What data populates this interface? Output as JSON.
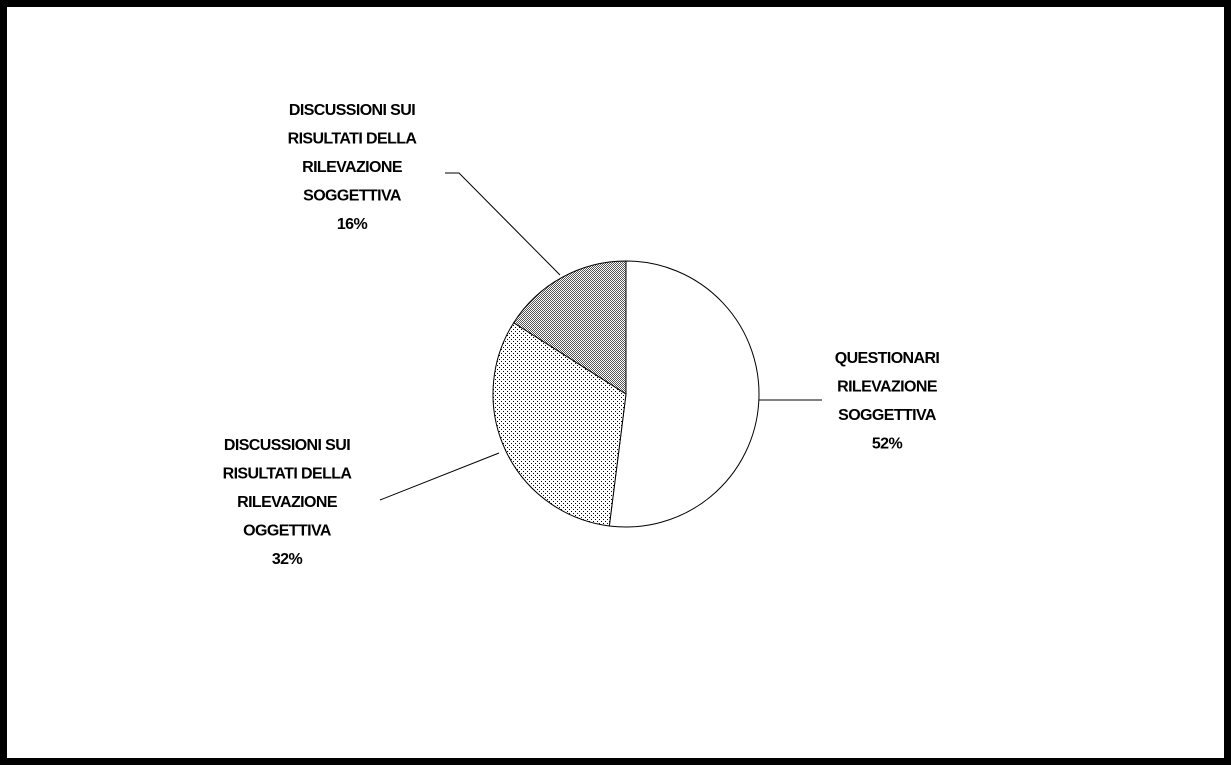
{
  "chart_data": {
    "type": "pie",
    "slices": [
      {
        "label": "QUESTIONARI RILEVAZIONE SOGGETTIVA",
        "label_lines": [
          "QUESTIONARI",
          "RILEVAZIONE",
          "SOGGETTIVA"
        ],
        "percent_text": "52%",
        "value": 52,
        "pattern": "solid-white"
      },
      {
        "label": "DISCUSSIONI SUI RISULTATI DELLA RILEVAZIONE OGGETTIVA",
        "label_lines": [
          "DISCUSSIONI SUI",
          "RISULTATI DELLA",
          "RILEVAZIONE",
          "OGGETTIVA"
        ],
        "percent_text": "32%",
        "value": 32,
        "pattern": "light-dots"
      },
      {
        "label": "DISCUSSIONI SUI RISULTATI DELLA RILEVAZIONE SOGGETTIVA",
        "label_lines": [
          "DISCUSSIONI SUI",
          "RISULTATI DELLA",
          "RILEVAZIONE",
          "SOGGETTIVA"
        ],
        "percent_text": "16%",
        "value": 16,
        "pattern": "dark-dots"
      }
    ],
    "start": "top",
    "direction": "clockwise",
    "legend": "none",
    "colors": {
      "outline": "#000000",
      "background": "#ffffff"
    }
  }
}
